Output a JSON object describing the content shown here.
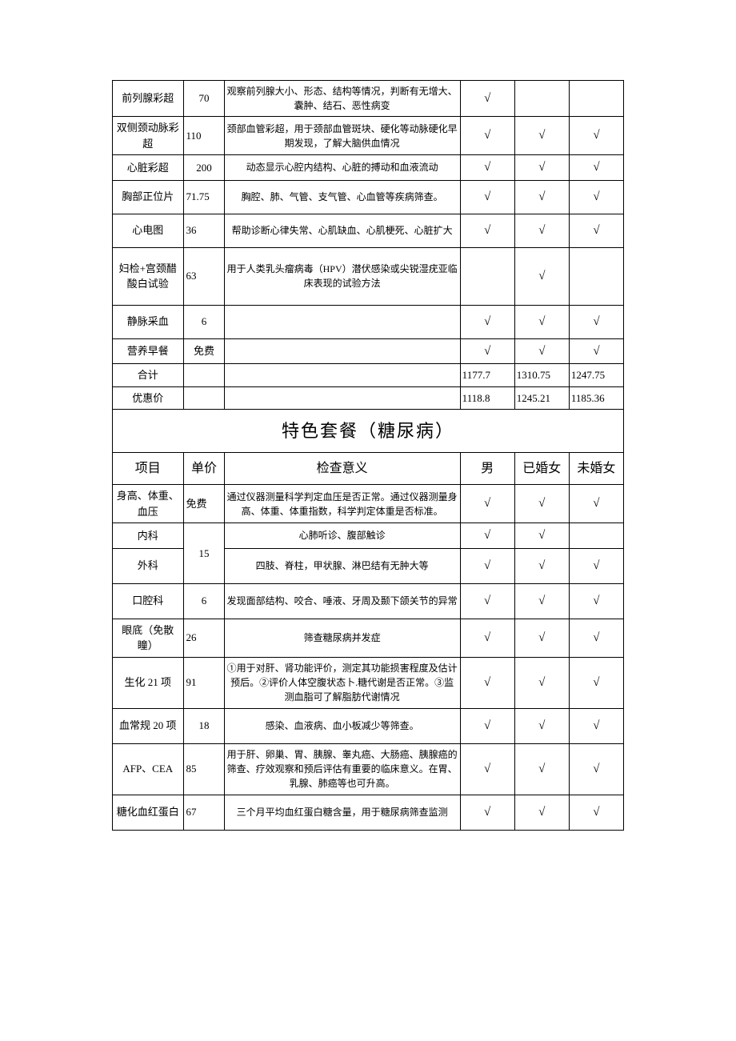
{
  "check": "√",
  "table1": {
    "rows": [
      {
        "name": "前列腺彩超",
        "price": "70",
        "desc": "观察前列腺大小、形态、结构等情况，判断有无增大、囊肿、结石、恶性病变",
        "c1": true,
        "c2": false,
        "c3": false,
        "priceAlign": "c"
      },
      {
        "name": "双侧颈动脉彩超",
        "price": "110",
        "desc": "颈部血管彩超，用于颈部血管斑块、硬化等动脉硬化早期发现，了解大脑供血情况",
        "c1": true,
        "c2": true,
        "c3": true,
        "priceAlign": "l"
      },
      {
        "name": "心脏彩超",
        "price": "200",
        "desc": "动态显示心腔内结构、心脏的搏动和血液流动",
        "c1": true,
        "c2": true,
        "c3": true,
        "priceAlign": "c",
        "short": true
      },
      {
        "name": "胸部正位片",
        "price": "71.75",
        "desc": "胸腔、肺、气管、支气管、心血管等疾病筛查。",
        "c1": true,
        "c2": true,
        "c3": true,
        "priceAlign": "l"
      },
      {
        "name": "心电图",
        "price": "36",
        "desc": "帮助诊断心律失常、心肌缺血、心肌梗死、心脏扩大",
        "c1": true,
        "c2": true,
        "c3": true,
        "priceAlign": "l"
      },
      {
        "name": "妇检+宫颈醋酸白试验",
        "price": "63",
        "desc": "用于人类乳头瘤病毒（HPV）潜伏感染或尖锐湿疣亚临床表现的试验方法",
        "c1": false,
        "c2": true,
        "c3": false,
        "priceAlign": "l",
        "tall": true
      },
      {
        "name": "静脉采血",
        "price": "6",
        "desc": "",
        "c1": true,
        "c2": true,
        "c3": true,
        "priceAlign": "c"
      },
      {
        "name": "营养早餐",
        "price": "免费",
        "desc": "",
        "c1": true,
        "c2": true,
        "c3": true,
        "priceAlign": "c",
        "short": true
      }
    ],
    "totals": [
      {
        "name": "合计",
        "price": "",
        "desc": "",
        "v1": "1177.7",
        "v2": "1310.75",
        "v3": "1247.75"
      },
      {
        "name": "优惠价",
        "price": "",
        "desc": "",
        "v1": "1118.8",
        "v2": "1245.21",
        "v3": "1185.36"
      }
    ]
  },
  "table2": {
    "title": "特色套餐（糖尿病）",
    "headers": {
      "name": "项目",
      "price": "单价",
      "desc": "检查意义",
      "c1": "男",
      "c2": "已婚女",
      "c3": "未婚女"
    },
    "rows": [
      {
        "name": "身高、体重、血压",
        "price": "免费",
        "desc": "通过仪器测量科学判定血压是否正常。通过仪器测量身高、体重、体重指数，科学判定体重是否标准。",
        "c1": true,
        "c2": true,
        "c3": true,
        "priceAlign": "l"
      },
      {
        "name": "内科",
        "priceSpan": true,
        "desc": "心肺听诊、腹部触诊",
        "c1": true,
        "c2": true,
        "c3": false,
        "short": true
      },
      {
        "name": "外科",
        "price": "15",
        "desc": "四肢、脊柱，甲状腺、淋巴结有无肿大等",
        "c1": true,
        "c2": true,
        "c3": true,
        "priceAlign": "c"
      },
      {
        "name": "口腔科",
        "price": "6",
        "desc": "发现面部结构、咬合、唾液、牙周及颞下颌关节的异常",
        "c1": true,
        "c2": true,
        "c3": true,
        "priceAlign": "c"
      },
      {
        "name": "眼底（免散瞳）",
        "price": "26",
        "desc": "筛查糖尿病并发症",
        "c1": true,
        "c2": true,
        "c3": true,
        "priceAlign": "l"
      },
      {
        "name": "生化 21 项",
        "price": "91",
        "desc": "①用于对肝、肾功能评价，测定其功能损害程度及估计预后。②评价人体空腹状态卜.糖代谢是否正常。③监测血脂可了解脂肪代谢情况",
        "c1": true,
        "c2": true,
        "c3": true,
        "priceAlign": "l",
        "tall": true
      },
      {
        "name": "血常规 20 项",
        "price": "18",
        "desc": "感染、血液病、血小板减少等筛查。",
        "c1": true,
        "c2": true,
        "c3": true,
        "priceAlign": "c"
      },
      {
        "name": "AFP、CEA",
        "price": "85",
        "desc": "用于肝、卵巢、胃、胰腺、睾丸癌、大肠癌、胰腺癌的筛查、疗效观察和预后评估有重要的临床意义。在胃、乳腺、肺癌等也可升高。",
        "c1": true,
        "c2": true,
        "c3": true,
        "priceAlign": "l",
        "tall": true
      },
      {
        "name": "糖化血红蛋白",
        "price": "67",
        "desc": "三个月平均血红蛋白糖含量，用于糖尿病筛查监测",
        "c1": true,
        "c2": true,
        "c3": true,
        "priceAlign": "l"
      }
    ]
  }
}
